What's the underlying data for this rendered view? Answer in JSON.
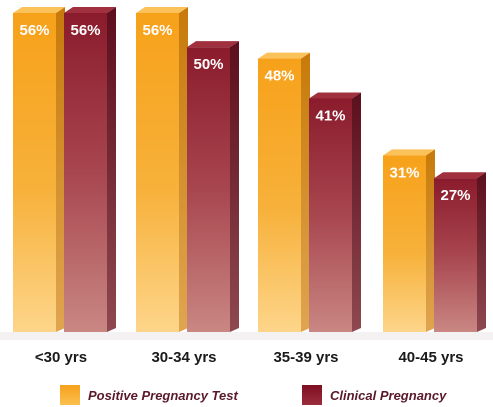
{
  "chart_data": {
    "type": "bar",
    "categories": [
      "<30 yrs",
      "30-34 yrs",
      "35-39 yrs",
      "40-45 yrs"
    ],
    "series": [
      {
        "name": "Positive Pregnancy Test",
        "values": [
          56,
          56,
          48,
          31
        ],
        "labels": [
          "56%",
          "56%",
          "48%",
          "31%"
        ],
        "color": "#f5a623"
      },
      {
        "name": "Clinical Pregnancy",
        "values": [
          56,
          50,
          41,
          27
        ],
        "labels": [
          "56%",
          "50%",
          "41%",
          "27%"
        ],
        "color": "#8c1f2e"
      }
    ],
    "ylim": [
      0,
      56
    ],
    "grid": false,
    "legend_position": "bottom"
  }
}
